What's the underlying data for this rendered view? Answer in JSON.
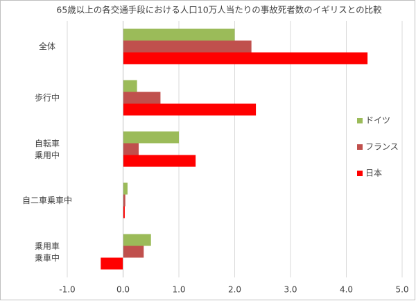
{
  "chart_data": {
    "type": "hbar",
    "title": "65歳以上の各交通手段における人口10万人当たりの事故死者数のイギリスとの比較",
    "categories": [
      [
        "全体"
      ],
      [
        "歩行中"
      ],
      [
        "自転車",
        "乗用中"
      ],
      [
        "自二車乗車中"
      ],
      [
        "乗用車",
        "乗車中"
      ]
    ],
    "series": [
      {
        "name": "ドイツ",
        "color": "#9bbb59",
        "values": [
          2.0,
          0.25,
          1.0,
          0.08,
          0.5
        ]
      },
      {
        "name": "フランス",
        "color": "#c0504d",
        "values": [
          2.3,
          0.67,
          0.28,
          0.04,
          0.37
        ]
      },
      {
        "name": "日本",
        "color": "#ff0000",
        "values": [
          4.38,
          2.38,
          1.3,
          0.03,
          -0.4
        ]
      }
    ],
    "xlim": [
      -1,
      5
    ],
    "xticks": [
      {
        "value": -1,
        "label": "-1.0"
      },
      {
        "value": 0,
        "label": "0.0"
      },
      {
        "value": 1,
        "label": "1.0"
      },
      {
        "value": 2,
        "label": "2.0"
      },
      {
        "value": 3,
        "label": "3.0"
      },
      {
        "value": 4,
        "label": "4.0"
      },
      {
        "value": 5,
        "label": "5.0"
      }
    ],
    "grid": true,
    "legend": "right"
  }
}
